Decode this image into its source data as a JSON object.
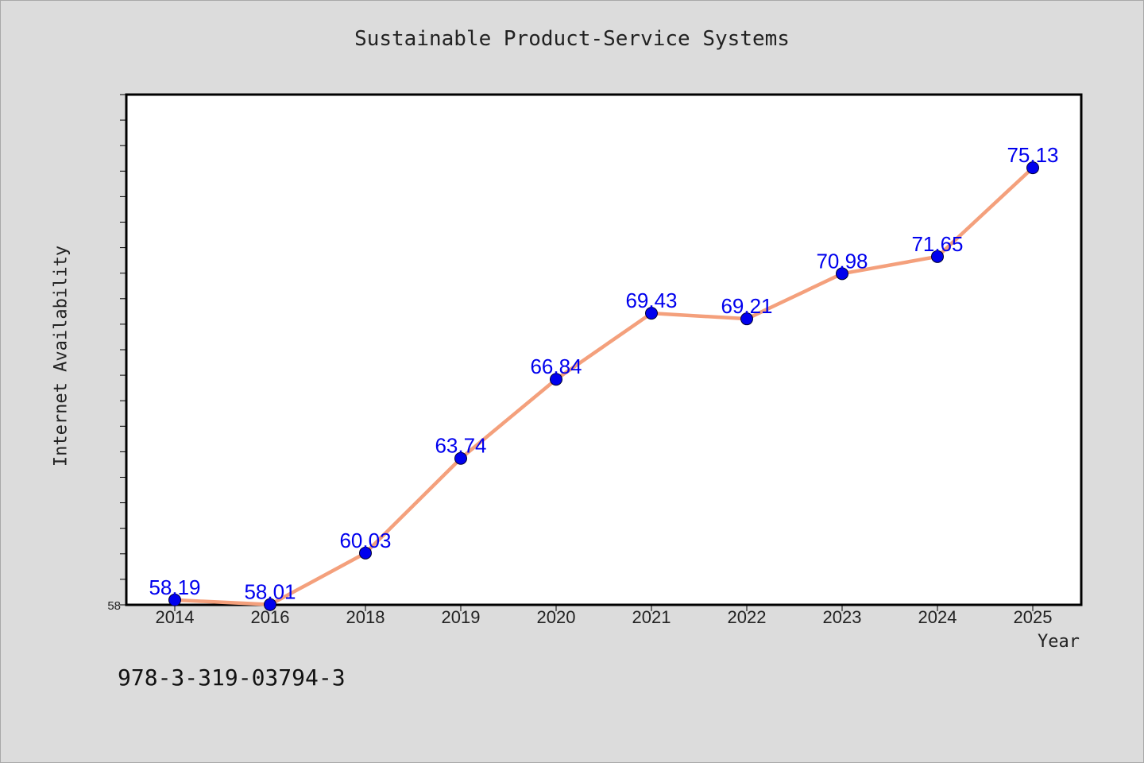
{
  "chart_data": {
    "type": "line",
    "title": "Sustainable Product-Service Systems",
    "xlabel": "Year",
    "ylabel": "Internet Availability",
    "categories": [
      "2014",
      "2016",
      "2018",
      "2019",
      "2020",
      "2021",
      "2022",
      "2023",
      "2024",
      "2025"
    ],
    "values": [
      58.19,
      58.01,
      60.03,
      63.74,
      66.84,
      69.43,
      69.21,
      70.98,
      71.65,
      75.13
    ],
    "data_labels": [
      "58.19",
      "58.01",
      "60.03",
      "63.74",
      "66.84",
      "69.43",
      "69.21",
      "70.98",
      "71.65",
      "75.13"
    ],
    "ylim": [
      58,
      78
    ],
    "y_tick_labels": [
      {
        "value": 58,
        "label": "58"
      }
    ],
    "y_minor_step": 1,
    "grid": false,
    "legend": "none",
    "colors": {
      "line": "#f4a07c",
      "marker": "#0000ee",
      "data_label": "#0000ee",
      "plot_bg": "#ffffff",
      "page_bg": "#dcdcdc"
    }
  },
  "footnote": "978-3-319-03794-3"
}
